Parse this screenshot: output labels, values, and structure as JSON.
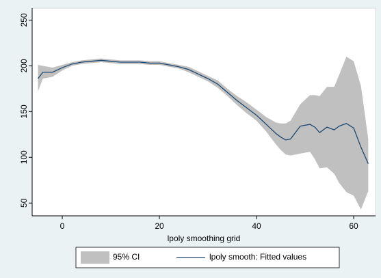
{
  "chart_data": {
    "type": "band_line",
    "xlabel": "lpoly smoothing grid",
    "x": [
      -5,
      -4,
      -2,
      0,
      2,
      4,
      6,
      8,
      10,
      12,
      14,
      16,
      18,
      20,
      22,
      24,
      26,
      28,
      30,
      32,
      34,
      36,
      38,
      40,
      42,
      44,
      45,
      46,
      47,
      49,
      51,
      52,
      53,
      54.5,
      56,
      57,
      58.5,
      60,
      61.5,
      63
    ],
    "series": [
      {
        "name": "95% CI",
        "color": "#c0c0c0",
        "upper": [
          201,
          200,
          198,
          201,
          204,
          206,
          207,
          208,
          207,
          206,
          206,
          206,
          205,
          205,
          203,
          201,
          199,
          194,
          189,
          184,
          175,
          167,
          160,
          152,
          144,
          138,
          137,
          137,
          140,
          158,
          168,
          168,
          167,
          177,
          177,
          190,
          210,
          205,
          178,
          120
        ],
        "lower": [
          172,
          186,
          188,
          195,
          200,
          202,
          203,
          204,
          203,
          202,
          202,
          202,
          201,
          201,
          199,
          197,
          193,
          188,
          183,
          176,
          167,
          157,
          148,
          140,
          128,
          114,
          108,
          103,
          102,
          104,
          106,
          98,
          88,
          89,
          82,
          72,
          62,
          58,
          43,
          63
        ]
      },
      {
        "name": "lpoly smooth: Fitted values",
        "color": "#1a476f",
        "values": [
          186,
          193,
          193,
          198,
          202,
          204,
          205,
          206,
          205,
          204,
          204,
          204,
          203,
          203,
          201,
          199,
          196,
          191,
          186,
          180,
          171,
          162,
          154,
          146,
          136,
          126,
          122,
          119,
          120,
          134,
          136,
          133,
          127,
          133,
          130,
          134,
          137,
          132,
          111,
          93
        ]
      }
    ],
    "xlim": [
      -6.2,
      64.5
    ],
    "xticks": [
      0,
      20,
      40,
      60
    ],
    "ylim": [
      36,
      263
    ],
    "yticks": [
      50,
      100,
      150,
      200,
      250
    ],
    "legend": "bottom"
  }
}
